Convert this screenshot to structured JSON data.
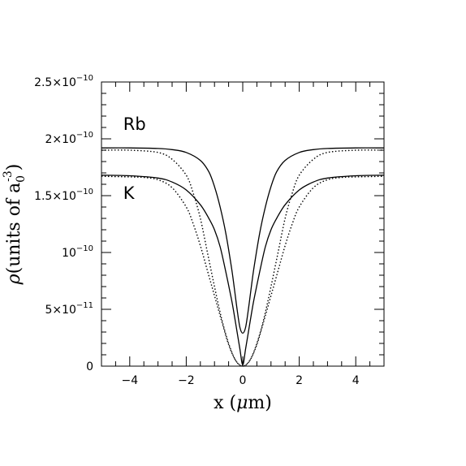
{
  "chart_data": {
    "type": "line",
    "xlabel_parts": [
      "x (",
      "μ",
      "m)"
    ],
    "ylabel_parts": [
      "ρ",
      "(units of a",
      "0",
      "-3",
      ")"
    ],
    "xlim": [
      -5,
      5
    ],
    "ylim": [
      0,
      2.5e-10
    ],
    "grid": false,
    "x_ticks": [
      {
        "value": -4,
        "label": "−4"
      },
      {
        "value": -2,
        "label": "−2"
      },
      {
        "value": 0,
        "label": "0"
      },
      {
        "value": 2,
        "label": "2"
      },
      {
        "value": 4,
        "label": "4"
      }
    ],
    "y_ticks": [
      {
        "value": 0,
        "mant": "0",
        "exp": ""
      },
      {
        "value": 5e-11,
        "mant": "5×10",
        "exp": "−11"
      },
      {
        "value": 1e-10,
        "mant": "10",
        "exp": "−10"
      },
      {
        "value": 1.5e-10,
        "mant": "1.5×10",
        "exp": "−10"
      },
      {
        "value": 2e-10,
        "mant": "2×10",
        "exp": "−10"
      },
      {
        "value": 2.5e-10,
        "mant": "2.5×10",
        "exp": "−10"
      }
    ],
    "annotations": [
      {
        "text": "Rb",
        "x": -4.0,
        "y": 2.08e-10
      },
      {
        "text": "K",
        "x": -4.0,
        "y": 1.47e-10
      }
    ],
    "series": [
      {
        "style": "solid",
        "species": "Rb",
        "x": [
          -5,
          -4,
          -3,
          -2.5,
          -2,
          -1.5,
          -1.2,
          -1,
          -0.8,
          -0.6,
          -0.4,
          -0.3,
          -0.2,
          -0.1,
          0,
          0.1,
          0.2,
          0.3,
          0.4,
          0.6,
          0.8,
          1,
          1.2,
          1.5,
          2,
          2.5,
          3,
          4,
          5
        ],
        "y": [
          1.92e-10,
          1.92e-10,
          1.915e-10,
          1.905e-10,
          1.88e-10,
          1.81e-10,
          1.71e-10,
          1.58e-10,
          1.4e-10,
          1.17e-10,
          8.7e-11,
          6.9e-11,
          5e-11,
          3.4e-11,
          2.9e-11,
          3.4e-11,
          5e-11,
          6.9e-11,
          8.7e-11,
          1.17e-10,
          1.4e-10,
          1.58e-10,
          1.71e-10,
          1.81e-10,
          1.88e-10,
          1.905e-10,
          1.915e-10,
          1.92e-10,
          1.92e-10
        ]
      },
      {
        "style": "solid",
        "species": "K",
        "x": [
          -5,
          -4,
          -3,
          -2.5,
          -2,
          -1.5,
          -1.2,
          -1,
          -0.8,
          -0.6,
          -0.4,
          -0.3,
          -0.2,
          -0.1,
          0,
          0.1,
          0.2,
          0.3,
          0.4,
          0.6,
          0.8,
          1,
          1.2,
          1.5,
          2,
          2.5,
          3,
          4,
          5
        ],
        "y": [
          1.68e-10,
          1.675e-10,
          1.655e-10,
          1.62e-10,
          1.55e-10,
          1.42e-10,
          1.3e-10,
          1.2e-10,
          1.05e-10,
          8.3e-11,
          5.9e-11,
          4.5e-11,
          3e-11,
          1.5e-11,
          1e-12,
          1.5e-11,
          3e-11,
          4.5e-11,
          5.9e-11,
          8.3e-11,
          1.05e-10,
          1.2e-10,
          1.3e-10,
          1.42e-10,
          1.55e-10,
          1.62e-10,
          1.655e-10,
          1.675e-10,
          1.68e-10
        ]
      },
      {
        "style": "dotted",
        "species": "Rb",
        "x": [
          -5,
          -4,
          -3,
          -2.5,
          -2,
          -1.75,
          -1.5,
          -1.25,
          -1,
          -0.75,
          -0.5,
          -0.25,
          0,
          0.25,
          0.5,
          0.75,
          1,
          1.25,
          1.5,
          1.75,
          2,
          2.5,
          3,
          4,
          5
        ],
        "y": [
          1.9e-10,
          1.9e-10,
          1.88e-10,
          1.82e-10,
          1.68e-10,
          1.52e-10,
          1.3e-10,
          1e-10,
          7e-11,
          4.2e-11,
          2e-11,
          5e-12,
          0,
          5e-12,
          2e-11,
          4.2e-11,
          7e-11,
          1e-10,
          1.3e-10,
          1.52e-10,
          1.68e-10,
          1.82e-10,
          1.88e-10,
          1.9e-10,
          1.9e-10
        ]
      },
      {
        "style": "dotted",
        "species": "K",
        "x": [
          -5,
          -4,
          -3.5,
          -3,
          -2.5,
          -2,
          -1.75,
          -1.5,
          -1.25,
          -1,
          -0.75,
          -0.5,
          -0.25,
          0,
          0.25,
          0.5,
          0.75,
          1,
          1.25,
          1.5,
          1.75,
          2,
          2.5,
          3,
          3.5,
          4,
          5
        ],
        "y": [
          1.67e-10,
          1.665e-10,
          1.66e-10,
          1.64e-10,
          1.57e-10,
          1.4e-10,
          1.25e-10,
          1.06e-10,
          8.4e-11,
          6.2e-11,
          4e-11,
          1.9e-11,
          5e-12,
          0,
          5e-12,
          1.9e-11,
          4e-11,
          6.2e-11,
          8.4e-11,
          1.06e-10,
          1.25e-10,
          1.4e-10,
          1.57e-10,
          1.64e-10,
          1.66e-10,
          1.665e-10,
          1.67e-10
        ]
      }
    ]
  }
}
